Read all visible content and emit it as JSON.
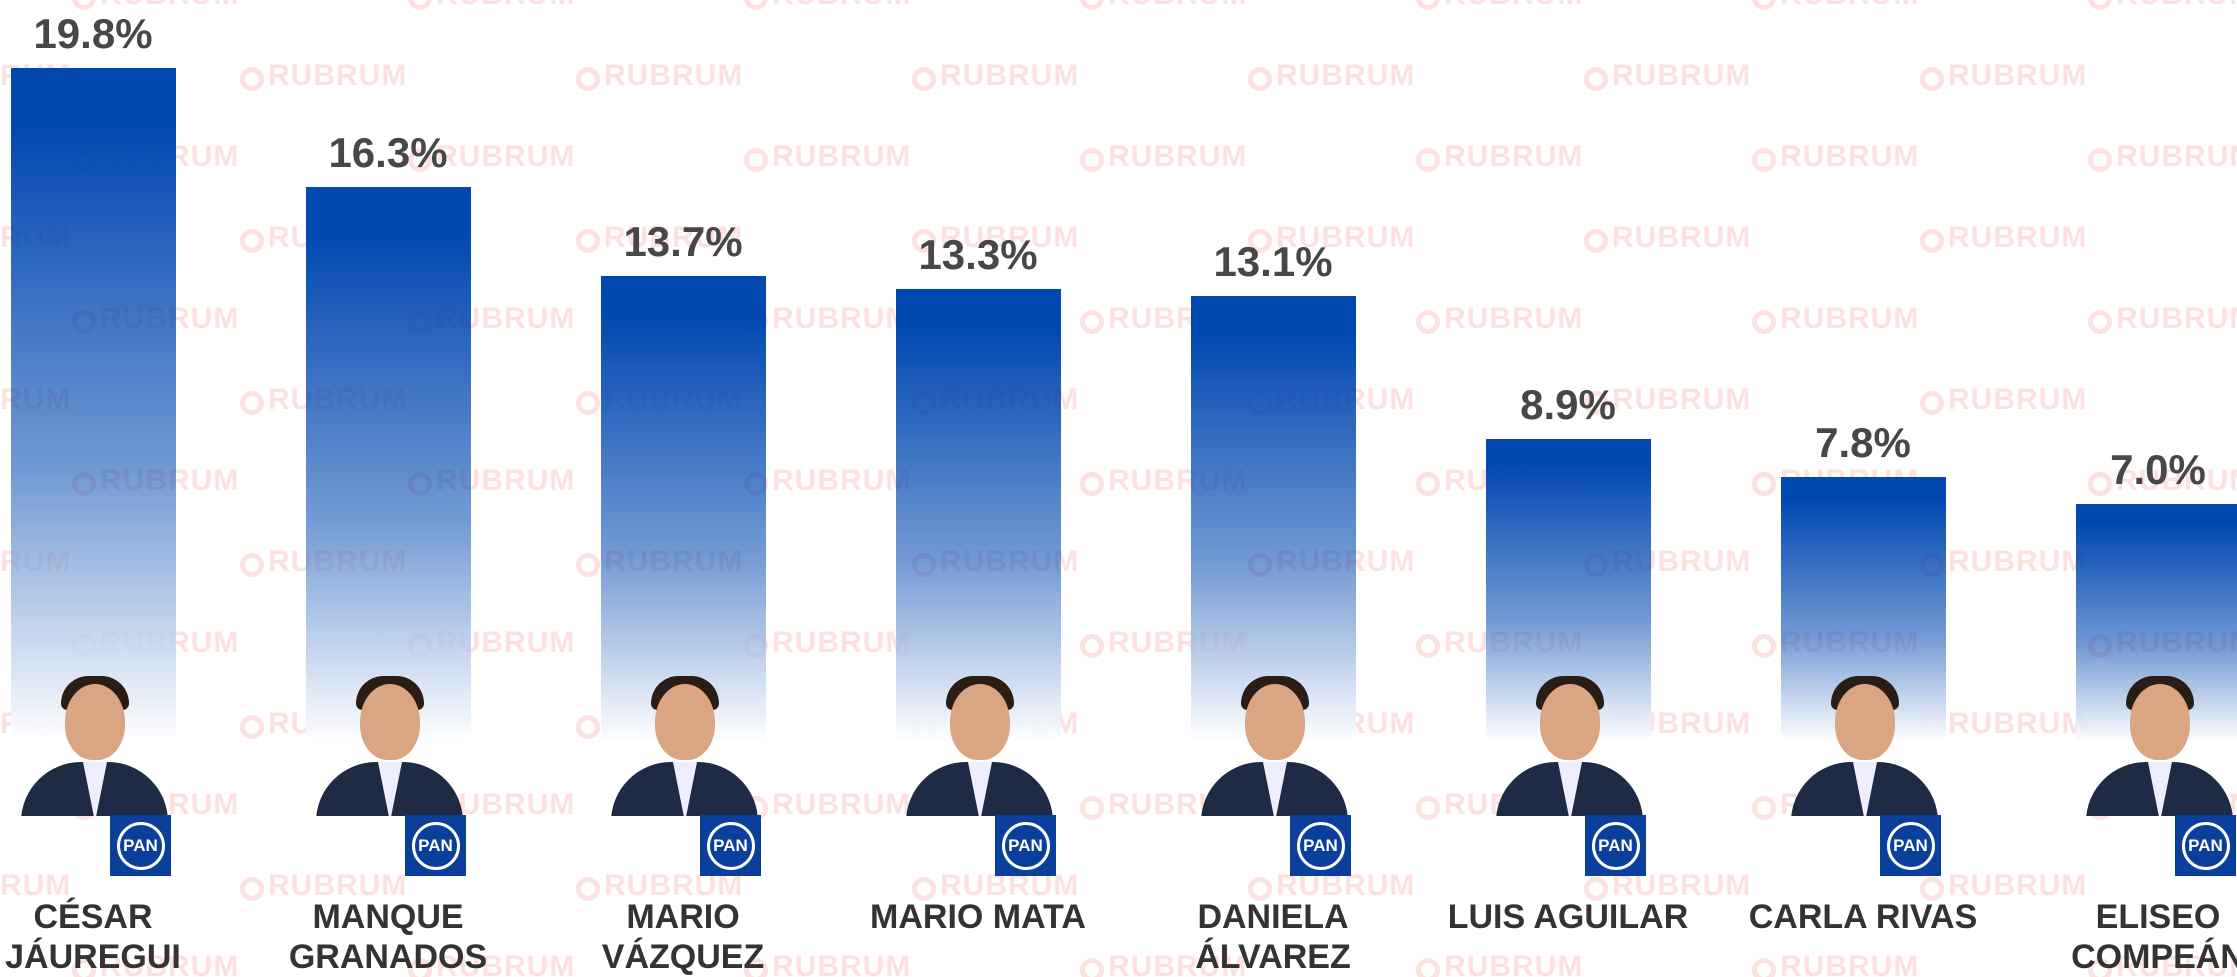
{
  "chart_data": {
    "type": "bar",
    "categories": [
      "CÉSAR JÁUREGUI",
      "MANQUE GRANADOS",
      "MARIO VÁZQUEZ",
      "MARIO MATA",
      "DANIELA ÁLVAREZ",
      "LUIS AGUILAR",
      "CARLA RIVAS",
      "ELISEO COMPEÁN"
    ],
    "values": [
      19.8,
      16.3,
      13.7,
      13.3,
      13.1,
      8.9,
      7.8,
      7.0
    ],
    "value_labels": [
      "19.8%",
      "16.3%",
      "13.7%",
      "13.3%",
      "13.1%",
      "8.9%",
      "7.8%",
      "7.0%"
    ],
    "color": "#0047b0",
    "ylim": [
      0,
      21.8
    ],
    "party_logo": "PAN",
    "watermark": "RUBRUM"
  }
}
